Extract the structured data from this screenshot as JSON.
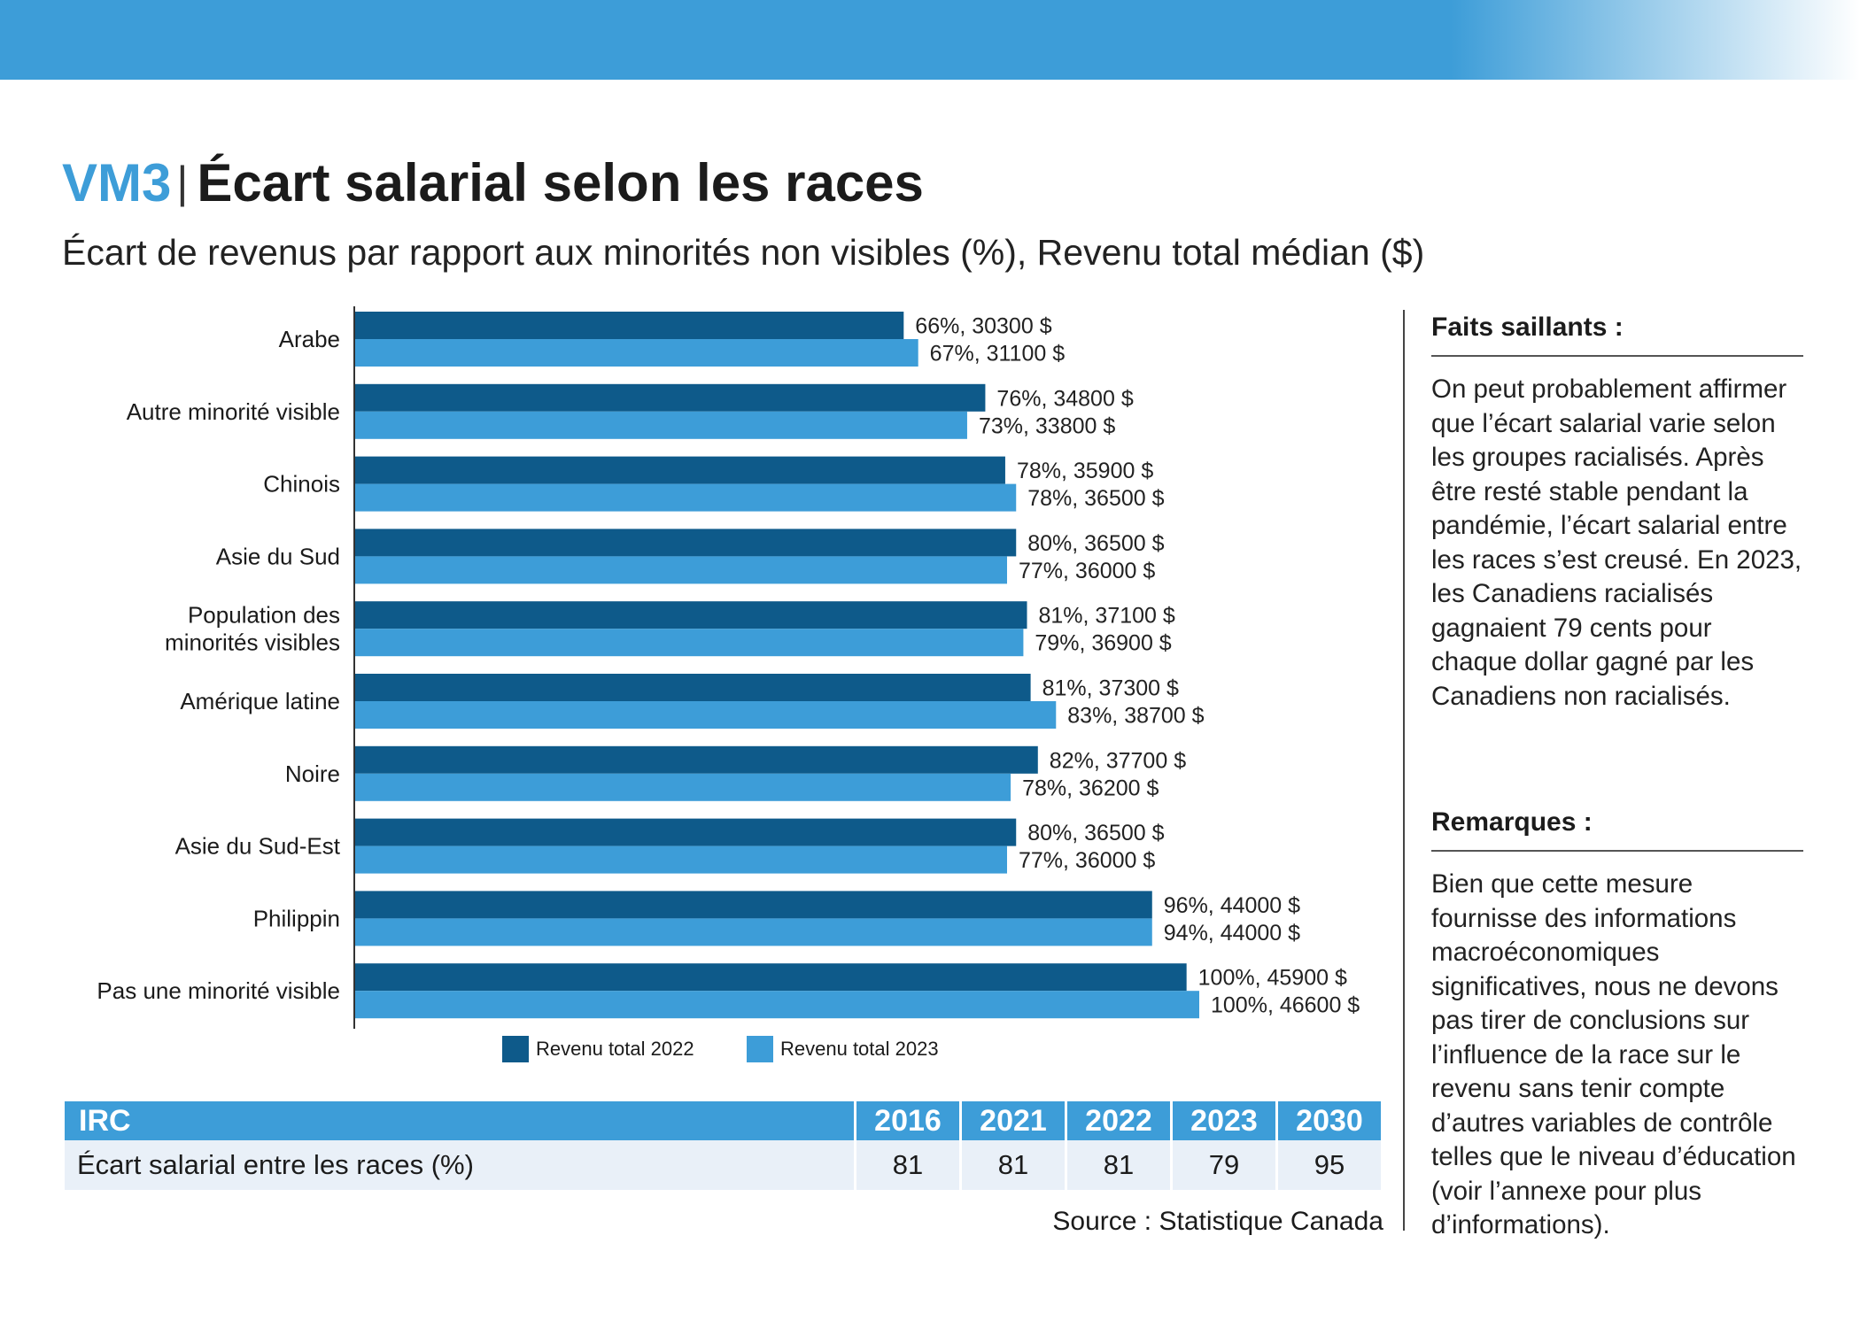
{
  "header": {
    "code": "VM3",
    "separator": "|",
    "title": "Écart salarial selon les races",
    "subtitle": "Écart de revenus par rapport aux minorités non visibles (%), Revenu total médian ($)"
  },
  "colors": {
    "series_2022": "#0e5a8a",
    "series_2023": "#3d9dd8",
    "accent": "#3d9dd8"
  },
  "chart_data": {
    "type": "bar",
    "orientation": "horizontal",
    "title": "Écart de revenus par rapport aux minorités non visibles (%), Revenu total médian ($)",
    "categories": [
      "Arabe",
      "Autre minorité visible",
      "Chinois",
      "Asie du Sud",
      "Population des minorités visibles",
      "Amérique latine",
      "Noire",
      "Asie du Sud-Est",
      "Philippin",
      "Pas une minorité visible"
    ],
    "category_lines": [
      [
        "Arabe"
      ],
      [
        "Autre minorité visible"
      ],
      [
        "Chinois"
      ],
      [
        "Asie du Sud"
      ],
      [
        "Population des",
        "minorités visibles"
      ],
      [
        "Amérique latine"
      ],
      [
        "Noire"
      ],
      [
        "Asie du Sud-Est"
      ],
      [
        "Philippin"
      ],
      [
        "Pas une minorité visible"
      ]
    ],
    "series": [
      {
        "name": "Revenu total 2022",
        "values": [
          30300,
          34800,
          35900,
          36500,
          37100,
          37300,
          37700,
          36500,
          44000,
          45900
        ],
        "percent": [
          66,
          76,
          78,
          80,
          81,
          81,
          82,
          80,
          96,
          100
        ],
        "labels": [
          "66%,  30300 $",
          "76%,  34800 $",
          "78%,  35900 $",
          "80%,  36500 $",
          "81%,  37100 $",
          "81%,  37300 $",
          "82%,  37700 $",
          "80%,  36500 $",
          "96%,  44000 $",
          "100%,  45900 $"
        ]
      },
      {
        "name": "Revenu total 2023",
        "values": [
          31100,
          33800,
          36500,
          36000,
          36900,
          38700,
          36200,
          36000,
          44000,
          46600
        ],
        "percent": [
          67,
          73,
          78,
          77,
          79,
          83,
          78,
          77,
          94,
          100
        ],
        "labels": [
          "67%,  31100 $",
          "73%,  33800 $",
          "78%,  36500 $",
          "77%,  36000 $",
          "79%,  36900 $",
          "83%,  38700 $",
          "78%, 36200 $",
          "77%,  36000 $",
          "94%,  44000 $",
          "100%,  46600 $"
        ]
      }
    ],
    "xlim": [
      0,
      46600
    ],
    "grid": false,
    "legend_position": "bottom"
  },
  "sidebar": {
    "facts_title": "Faits saillants :",
    "facts_text": "On peut probablement affirmer que l’écart salarial varie selon les groupes racialisés. Après être resté stable pendant la pandémie, l’écart salarial entre les races s’est creusé. En 2023, les Canadiens racialisés gagnaient 79 cents pour chaque dollar gagné par les Canadiens non racialisés.",
    "remarks_title": "Remarques :",
    "remarks_text": "Bien que cette mesure fournisse des informations macroéconomiques significatives, nous ne devons pas tirer de conclusions sur l’influence de la race sur le revenu sans tenir compte d’autres variables de contrôle telles que le niveau d’éducation (voir l’annexe pour plus d’informations)."
  },
  "irc_table": {
    "header_label": "IRC",
    "years": [
      "2016",
      "2021",
      "2022",
      "2023",
      "2030"
    ],
    "row_label": "Écart salarial entre les races (%)",
    "values": [
      "81",
      "81",
      "81",
      "79",
      "95"
    ]
  },
  "source": "Source : Statistique Canada"
}
